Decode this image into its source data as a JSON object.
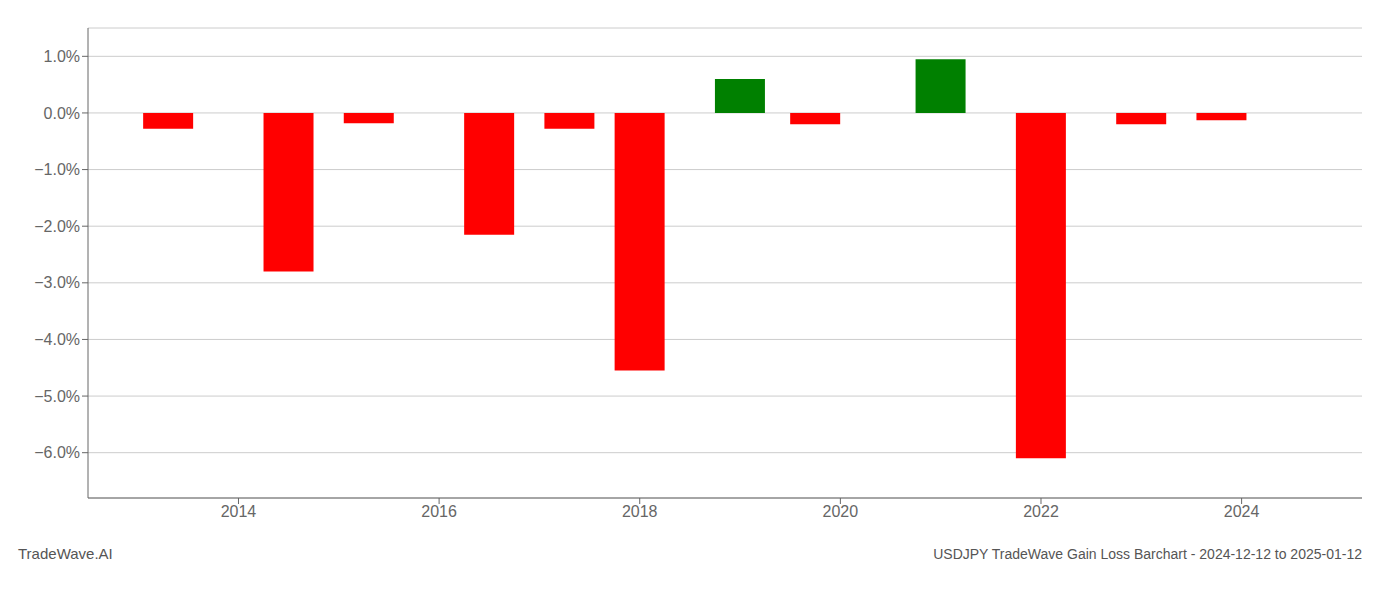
{
  "chart_data": {
    "type": "bar",
    "title": "USDJPY TradeWave Gain Loss Barchart - 2024-12-12 to 2025-01-12",
    "annotations": [
      "TradeWave.AI"
    ],
    "x": [
      2013.3,
      2014.5,
      2015.3,
      2016.5,
      2017.3,
      2018.0,
      2019.0,
      2019.75,
      2021.0,
      2022.0,
      2023.0,
      2023.8
    ],
    "values": [
      -0.28,
      -2.8,
      -0.18,
      -2.15,
      -0.28,
      -4.55,
      0.6,
      -0.2,
      0.95,
      -6.1,
      -0.2,
      -0.13
    ],
    "colors": [
      "#ff0000",
      "#ff0000",
      "#ff0000",
      "#ff0000",
      "#ff0000",
      "#ff0000",
      "#008000",
      "#ff0000",
      "#008000",
      "#ff0000",
      "#ff0000",
      "#ff0000"
    ],
    "xlim": [
      2012.5,
      2025.2
    ],
    "xticks": [
      2014,
      2016,
      2018,
      2020,
      2022,
      2024
    ],
    "ylim": [
      -6.8,
      1.5
    ],
    "yticks": [
      {
        "value": -6.0,
        "label": "−6.0%"
      },
      {
        "value": -5.0,
        "label": "−5.0%"
      },
      {
        "value": -4.0,
        "label": "−4.0%"
      },
      {
        "value": -3.0,
        "label": "−3.0%"
      },
      {
        "value": -2.0,
        "label": "−2.0%"
      },
      {
        "value": -1.0,
        "label": "−1.0%"
      },
      {
        "value": 0.0,
        "label": "0.0%"
      },
      {
        "value": 1.0,
        "label": "1.0%"
      }
    ],
    "grid": true
  }
}
